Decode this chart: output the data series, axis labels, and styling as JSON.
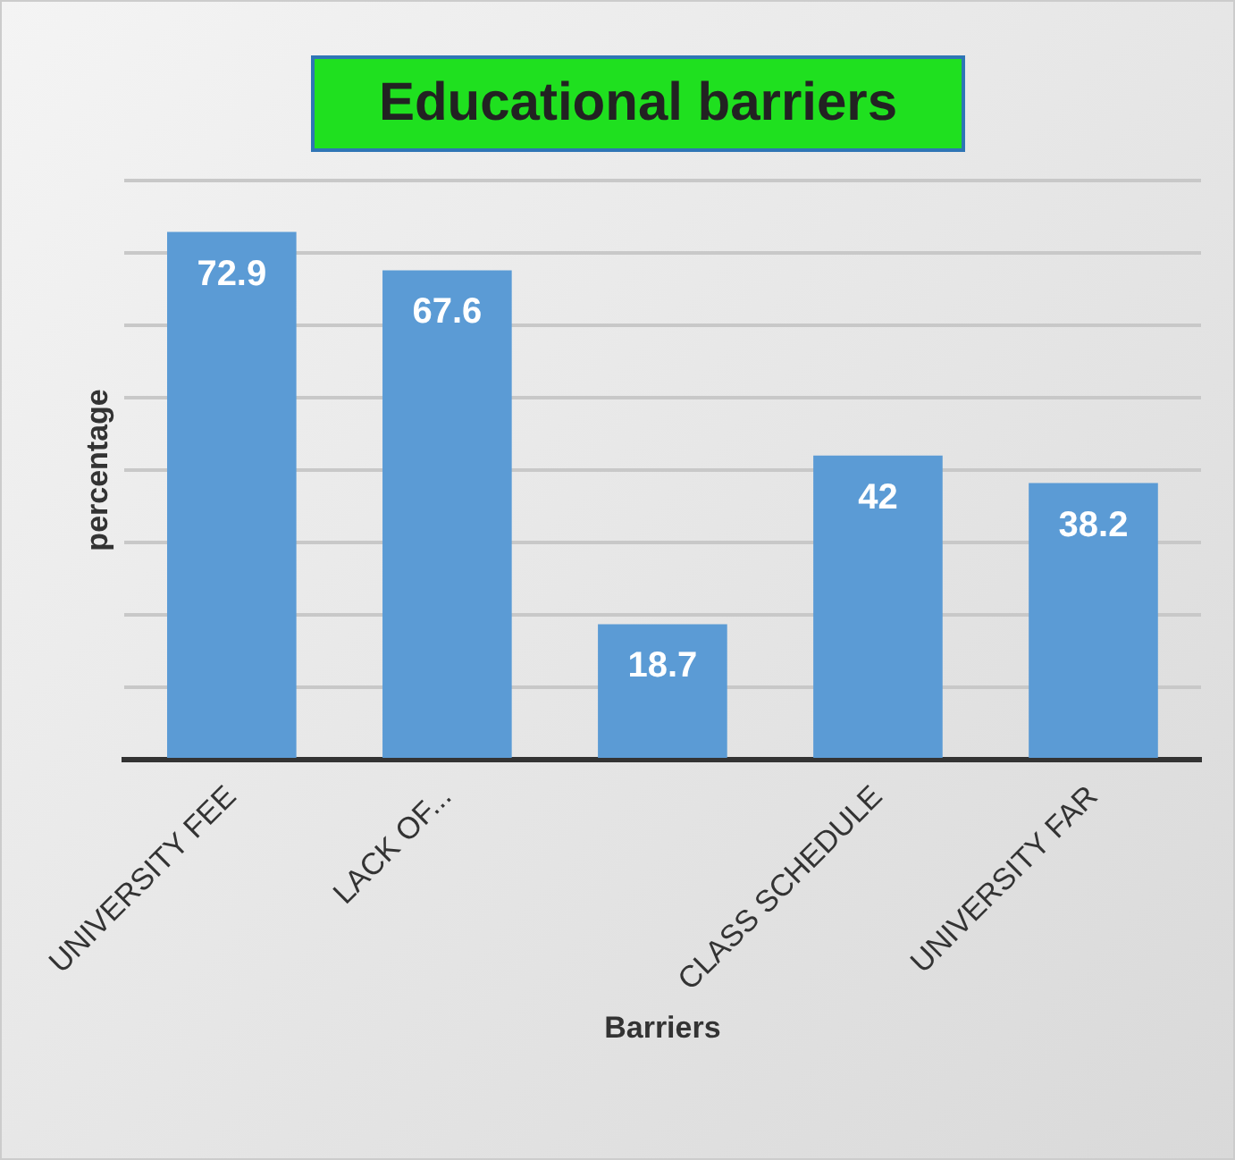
{
  "chart_data": {
    "type": "bar",
    "title": "Educational barriers",
    "xlabel": "Barriers",
    "ylabel": "percentage",
    "categories": [
      "UNIVERSITY FEE",
      "LACK OF...",
      null,
      "CLASS SCHEDULE",
      "UNIVERSITY FAR"
    ],
    "values": [
      72.9,
      67.6,
      18.7,
      42,
      38.2
    ],
    "color": "#5b9bd5",
    "ylim": [
      0,
      80
    ],
    "yticks": [
      {
        "value": 0,
        "label": null
      },
      {
        "value": 10,
        "label": null
      },
      {
        "value": 20,
        "label": null
      },
      {
        "value": 30,
        "label": null
      },
      {
        "value": 40,
        "label": null
      },
      {
        "value": 50,
        "label": null
      },
      {
        "value": 60,
        "label": null
      },
      {
        "value": 70,
        "label": null
      },
      {
        "value": 80,
        "label": null
      }
    ],
    "tick_labels": "x",
    "grid": "y",
    "data_labels": true,
    "legend": false
  }
}
